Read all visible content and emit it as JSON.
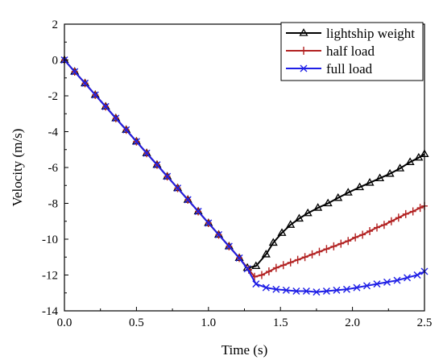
{
  "chart_data": {
    "type": "line",
    "xlabel": "Time (s)",
    "ylabel": "Velocity (m/s)",
    "xlim": [
      0.0,
      2.5
    ],
    "ylim": [
      -14,
      2
    ],
    "xticks": [
      "0.0",
      "0.5",
      "1.0",
      "1.5",
      "2.0",
      "2.5"
    ],
    "yticks": [
      "2",
      "0",
      "-2",
      "-4",
      "-6",
      "-8",
      "-10",
      "-12",
      "-14"
    ],
    "grid": false,
    "legend_position": "top-right",
    "series": [
      {
        "name": "lightship weight",
        "color": "#000000",
        "marker": "triangle",
        "points": [
          [
            0.0,
            0.0
          ],
          [
            0.071,
            -0.65
          ],
          [
            0.143,
            -1.3
          ],
          [
            0.214,
            -1.95
          ],
          [
            0.286,
            -2.6
          ],
          [
            0.357,
            -3.25
          ],
          [
            0.429,
            -3.9
          ],
          [
            0.5,
            -4.55
          ],
          [
            0.571,
            -5.2
          ],
          [
            0.643,
            -5.85
          ],
          [
            0.714,
            -6.5
          ],
          [
            0.786,
            -7.15
          ],
          [
            0.857,
            -7.8
          ],
          [
            0.929,
            -8.45
          ],
          [
            1.0,
            -9.1
          ],
          [
            1.071,
            -9.75
          ],
          [
            1.143,
            -10.4
          ],
          [
            1.214,
            -11.05
          ],
          [
            1.27,
            -11.6
          ],
          [
            1.33,
            -11.5
          ],
          [
            1.4,
            -10.85
          ],
          [
            1.45,
            -10.2
          ],
          [
            1.51,
            -9.65
          ],
          [
            1.57,
            -9.2
          ],
          [
            1.63,
            -8.85
          ],
          [
            1.69,
            -8.55
          ],
          [
            1.76,
            -8.25
          ],
          [
            1.83,
            -8.0
          ],
          [
            1.9,
            -7.7
          ],
          [
            1.97,
            -7.4
          ],
          [
            2.05,
            -7.1
          ],
          [
            2.12,
            -6.85
          ],
          [
            2.19,
            -6.6
          ],
          [
            2.26,
            -6.35
          ],
          [
            2.33,
            -6.05
          ],
          [
            2.4,
            -5.7
          ],
          [
            2.46,
            -5.45
          ],
          [
            2.5,
            -5.25
          ]
        ]
      },
      {
        "name": "half load",
        "color": "#b22222",
        "marker": "plus",
        "points": [
          [
            0.0,
            0.0
          ],
          [
            0.071,
            -0.65
          ],
          [
            0.143,
            -1.3
          ],
          [
            0.214,
            -1.95
          ],
          [
            0.286,
            -2.6
          ],
          [
            0.357,
            -3.25
          ],
          [
            0.429,
            -3.9
          ],
          [
            0.5,
            -4.55
          ],
          [
            0.571,
            -5.2
          ],
          [
            0.643,
            -5.85
          ],
          [
            0.714,
            -6.5
          ],
          [
            0.786,
            -7.15
          ],
          [
            0.857,
            -7.8
          ],
          [
            0.929,
            -8.45
          ],
          [
            1.0,
            -9.1
          ],
          [
            1.071,
            -9.75
          ],
          [
            1.143,
            -10.4
          ],
          [
            1.214,
            -11.05
          ],
          [
            1.28,
            -11.7
          ],
          [
            1.32,
            -12.1
          ],
          [
            1.37,
            -12.0
          ],
          [
            1.42,
            -11.8
          ],
          [
            1.47,
            -11.6
          ],
          [
            1.52,
            -11.45
          ],
          [
            1.57,
            -11.3
          ],
          [
            1.62,
            -11.15
          ],
          [
            1.67,
            -11.0
          ],
          [
            1.72,
            -10.85
          ],
          [
            1.77,
            -10.7
          ],
          [
            1.82,
            -10.55
          ],
          [
            1.87,
            -10.4
          ],
          [
            1.92,
            -10.25
          ],
          [
            1.97,
            -10.1
          ],
          [
            2.02,
            -9.9
          ],
          [
            2.07,
            -9.75
          ],
          [
            2.12,
            -9.55
          ],
          [
            2.17,
            -9.35
          ],
          [
            2.22,
            -9.2
          ],
          [
            2.27,
            -9.0
          ],
          [
            2.32,
            -8.8
          ],
          [
            2.37,
            -8.6
          ],
          [
            2.42,
            -8.45
          ],
          [
            2.47,
            -8.25
          ],
          [
            2.5,
            -8.15
          ]
        ]
      },
      {
        "name": "full load",
        "color": "#1f1fe6",
        "marker": "cross",
        "points": [
          [
            0.0,
            0.0
          ],
          [
            0.071,
            -0.65
          ],
          [
            0.143,
            -1.3
          ],
          [
            0.214,
            -1.95
          ],
          [
            0.286,
            -2.6
          ],
          [
            0.357,
            -3.25
          ],
          [
            0.429,
            -3.9
          ],
          [
            0.5,
            -4.55
          ],
          [
            0.571,
            -5.2
          ],
          [
            0.643,
            -5.85
          ],
          [
            0.714,
            -6.5
          ],
          [
            0.786,
            -7.15
          ],
          [
            0.857,
            -7.8
          ],
          [
            0.929,
            -8.45
          ],
          [
            1.0,
            -9.1
          ],
          [
            1.071,
            -9.75
          ],
          [
            1.143,
            -10.4
          ],
          [
            1.214,
            -11.05
          ],
          [
            1.27,
            -11.65
          ],
          [
            1.33,
            -12.5
          ],
          [
            1.4,
            -12.7
          ],
          [
            1.47,
            -12.8
          ],
          [
            1.54,
            -12.85
          ],
          [
            1.61,
            -12.9
          ],
          [
            1.68,
            -12.9
          ],
          [
            1.75,
            -12.95
          ],
          [
            1.82,
            -12.9
          ],
          [
            1.89,
            -12.85
          ],
          [
            1.96,
            -12.8
          ],
          [
            2.03,
            -12.7
          ],
          [
            2.1,
            -12.6
          ],
          [
            2.17,
            -12.5
          ],
          [
            2.24,
            -12.4
          ],
          [
            2.31,
            -12.3
          ],
          [
            2.38,
            -12.15
          ],
          [
            2.45,
            -12.0
          ],
          [
            2.5,
            -11.8
          ]
        ]
      }
    ]
  }
}
